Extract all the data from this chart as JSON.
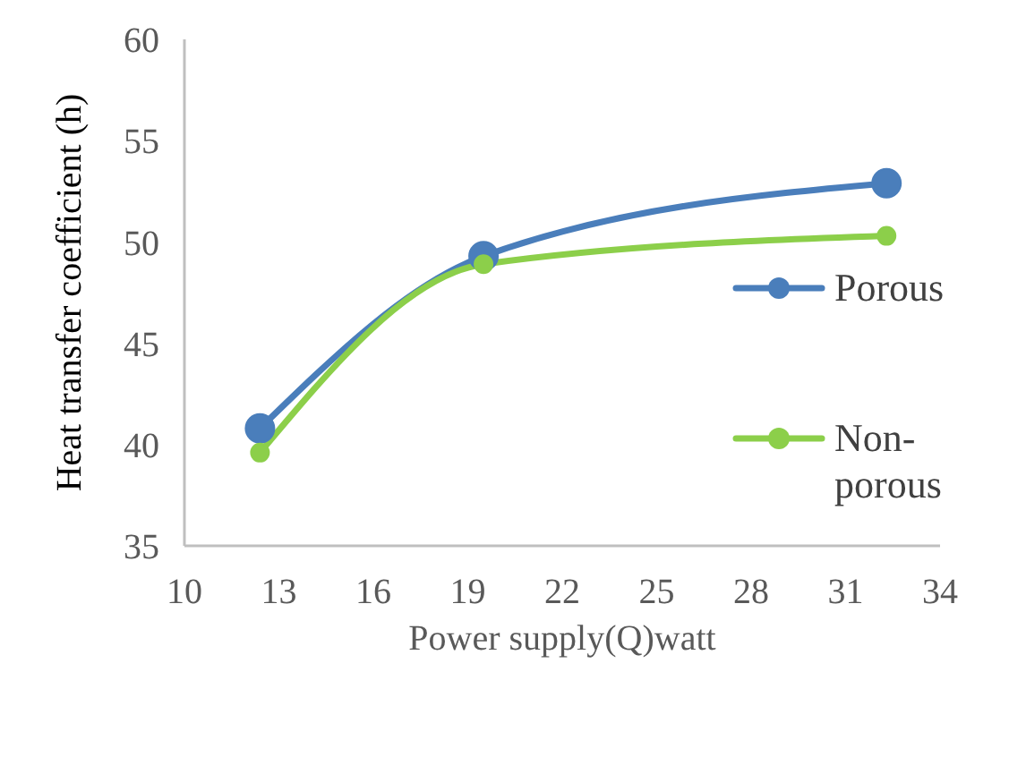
{
  "chart_data": {
    "type": "line",
    "xlabel": "Power supply(Q)watt",
    "ylabel": "Heat transfer coefficient (h)",
    "x": [
      12.4,
      19.5,
      32.3
    ],
    "series": [
      {
        "name": "Porous",
        "color": "#4a7ebb",
        "values": [
          40.8,
          49.3,
          52.9
        ]
      },
      {
        "name": "Non-porous",
        "color": "#8ccf4a",
        "values": [
          39.6,
          48.9,
          50.3
        ]
      }
    ],
    "xlim": [
      10,
      34
    ],
    "xticks": [
      10,
      13,
      16,
      19,
      22,
      25,
      28,
      31,
      34
    ],
    "ylim": [
      35,
      60
    ],
    "yticks": [
      35,
      40,
      45,
      50,
      55,
      60
    ],
    "grid": false,
    "legend": "right",
    "marker": "circle",
    "line_style": "solid"
  }
}
